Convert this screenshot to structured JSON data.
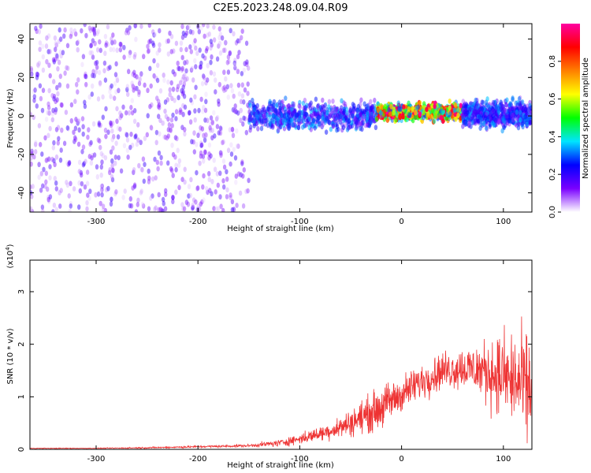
{
  "title": "C2E5.2023.248.09.04.R09",
  "chart_data": [
    {
      "type": "heatmap",
      "xlabel": "Height of straight line (km)",
      "ylabel": "Frequency (Hz)",
      "xlim": [
        -365,
        128
      ],
      "ylim": [
        -50,
        48
      ],
      "xticks": [
        -300,
        -200,
        -100,
        0,
        100
      ],
      "yticks": [
        -40,
        -20,
        0,
        20,
        40
      ],
      "colorbar": {
        "label": "Normalized spectral amplitude",
        "range": [
          0,
          1
        ],
        "ticks": [
          "0.0",
          "0.2",
          "0.4",
          "0.6",
          "0.8"
        ],
        "tick_values": [
          0,
          0.2,
          0.4,
          0.6,
          0.8
        ],
        "colors": [
          "#ffffff",
          "#7a00ff",
          "#0000ff",
          "#00e5ff",
          "#00ff00",
          "#ffff00",
          "#ff7f00",
          "#ff0000",
          "#ff00a0"
        ]
      },
      "regions": [
        {
          "x": [
            -365,
            -150
          ],
          "freq_spread": [
            -50,
            48
          ],
          "amplitude": 0.1
        },
        {
          "x": [
            -150,
            -25
          ],
          "freq_center": 0,
          "freq_spread": [
            -8,
            12
          ],
          "amplitude": 0.3
        },
        {
          "x": [
            -25,
            60
          ],
          "freq_center": 2,
          "freq_spread": [
            -5,
            7
          ],
          "amplitude": 0.85
        },
        {
          "x": [
            60,
            128
          ],
          "freq_center": 1,
          "freq_spread": [
            -9,
            10
          ],
          "amplitude": 0.3
        }
      ]
    },
    {
      "type": "line",
      "xlabel": "Height of straight line (km)",
      "ylabel": "SNR (10 * v/v)",
      "multiplier": "(x10",
      "multiplier_exp": "4",
      "multiplier_close": ")",
      "xlim": [
        -365,
        128
      ],
      "ylim": [
        0,
        3.6
      ],
      "xticks": [
        -300,
        -200,
        -100,
        0,
        100
      ],
      "yticks": [
        0,
        1,
        2,
        3
      ],
      "color": "#ee3333",
      "series": [
        {
          "x": [
            -365,
            -300,
            -250,
            -200,
            -150,
            -120,
            -100,
            -80,
            -60,
            -40,
            -20,
            0,
            20,
            40,
            60,
            80,
            100,
            120,
            128
          ],
          "y": [
            0.02,
            0.02,
            0.03,
            0.05,
            0.07,
            0.12,
            0.2,
            0.3,
            0.42,
            0.6,
            0.8,
            1.05,
            1.3,
            1.5,
            1.55,
            1.5,
            1.4,
            1.2,
            1.1
          ],
          "spread": [
            0.01,
            0.01,
            0.02,
            0.03,
            0.04,
            0.1,
            0.15,
            0.2,
            0.3,
            0.45,
            0.6,
            0.5,
            0.5,
            0.5,
            0.6,
            0.8,
            1.2,
            1.5,
            1.4
          ]
        }
      ]
    }
  ]
}
